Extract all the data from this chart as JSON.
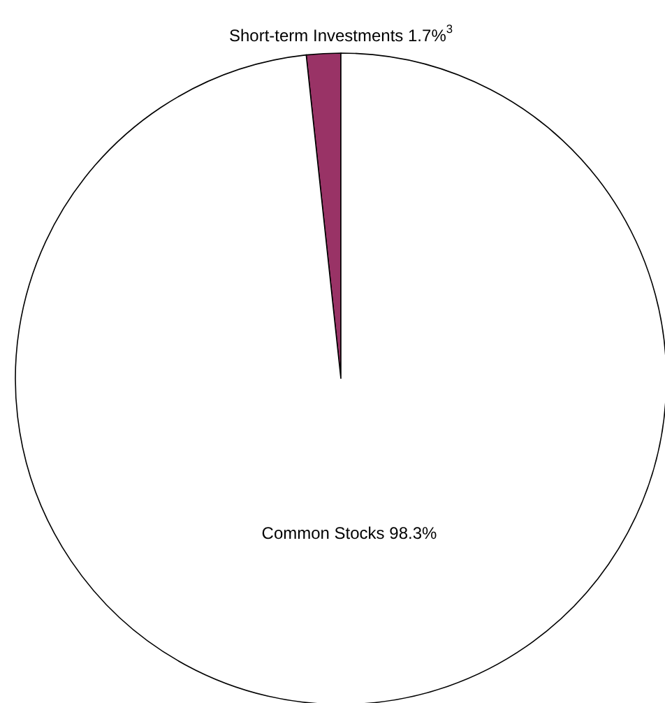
{
  "chart_data": {
    "type": "pie",
    "categories": [
      "Short-term Investments",
      "Common Stocks"
    ],
    "values": [
      1.7,
      98.3
    ],
    "colors": [
      "#993366",
      "#ffffff"
    ],
    "value_labels": [
      "1.7%$^{3}$",
      "98.3%"
    ]
  }
}
